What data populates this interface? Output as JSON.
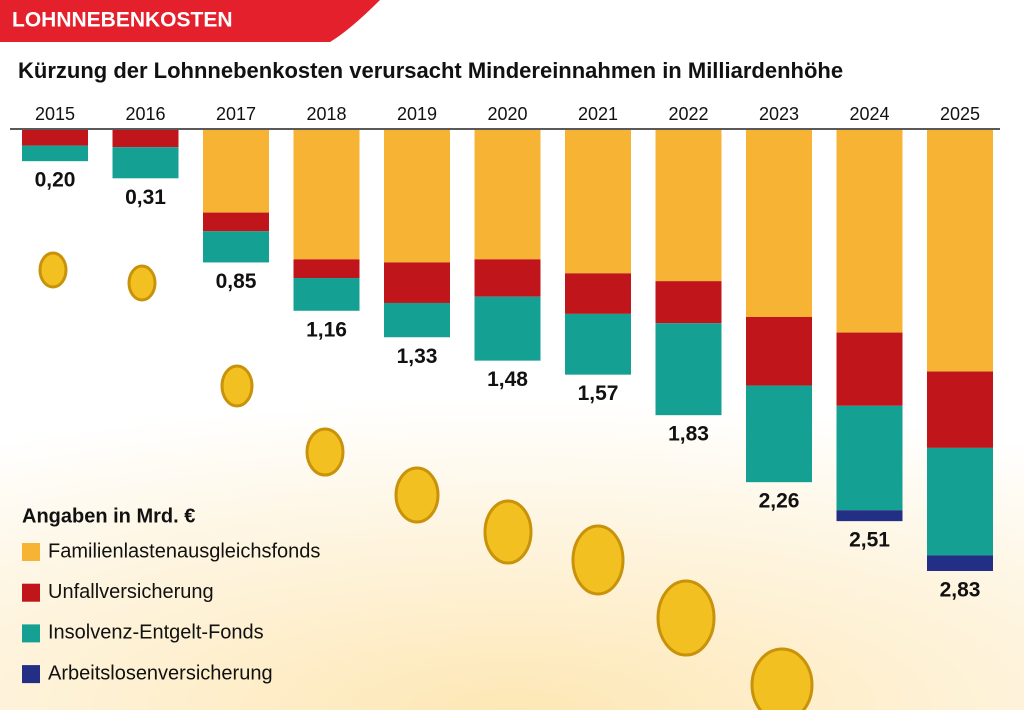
{
  "header": "LOHNNEBENKOSTEN",
  "chart_data": {
    "type": "stacked-bar",
    "title": "Kürzung der Lohnnebenkosten verursacht Mindereinnahmen in Milliardenhöhe",
    "legend_title": "Angaben in Mrd. €",
    "categories": [
      "2015",
      "2016",
      "2017",
      "2018",
      "2019",
      "2020",
      "2021",
      "2022",
      "2023",
      "2024",
      "2025"
    ],
    "series": [
      {
        "name": "Familienlastenausgleichsfonds",
        "color": "#f7b334",
        "values": [
          0,
          0,
          0.53,
          0.83,
          0.85,
          0.83,
          0.92,
          0.97,
          1.2,
          1.3,
          1.55
        ]
      },
      {
        "name": "Unfallversicherung",
        "color": "#c0161b",
        "values": [
          0.1,
          0.11,
          0.12,
          0.12,
          0.26,
          0.24,
          0.26,
          0.27,
          0.44,
          0.47,
          0.49
        ]
      },
      {
        "name": "Insolvenz-Entgelt-Fonds",
        "color": "#14a093",
        "values": [
          0.1,
          0.2,
          0.2,
          0.21,
          0.22,
          0.41,
          0.39,
          0.59,
          0.62,
          0.67,
          0.69
        ]
      },
      {
        "name": "Arbeitslosenversicherung",
        "color": "#232f84",
        "values": [
          0,
          0,
          0,
          0,
          0,
          0,
          0,
          0,
          0,
          0.07,
          0.1
        ]
      }
    ],
    "totals": [
      0.2,
      0.31,
      0.85,
      1.16,
      1.33,
      1.48,
      1.57,
      1.83,
      2.26,
      2.51,
      2.83
    ],
    "value_labels": [
      "0,20",
      "0,31",
      "0,85",
      "1,16",
      "1,33",
      "1,48",
      "1,57",
      "1,83",
      "2,26",
      "2,51",
      "2,83"
    ]
  }
}
